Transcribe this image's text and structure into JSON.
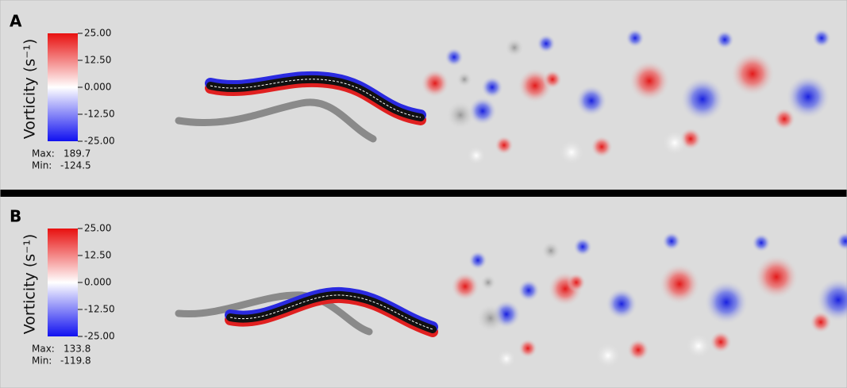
{
  "panels": [
    {
      "label": "A",
      "colorbar": {
        "title": "Vorticity (s⁻¹)",
        "ticks": [
          "25.00",
          "12.50",
          "0.000",
          "-12.50",
          "-25.00"
        ],
        "max_label": "Max:",
        "max": "189.7",
        "min_label": "Min:",
        "min": "-124.5"
      }
    },
    {
      "label": "B",
      "colorbar": {
        "title": "Vorticity (s⁻¹)",
        "ticks": [
          "25.00",
          "12.50",
          "0.000",
          "-12.50",
          "-25.00"
        ],
        "max_label": "Max:",
        "max": "133.8",
        "min_label": "Min:",
        "min": "-119.8"
      }
    }
  ]
}
